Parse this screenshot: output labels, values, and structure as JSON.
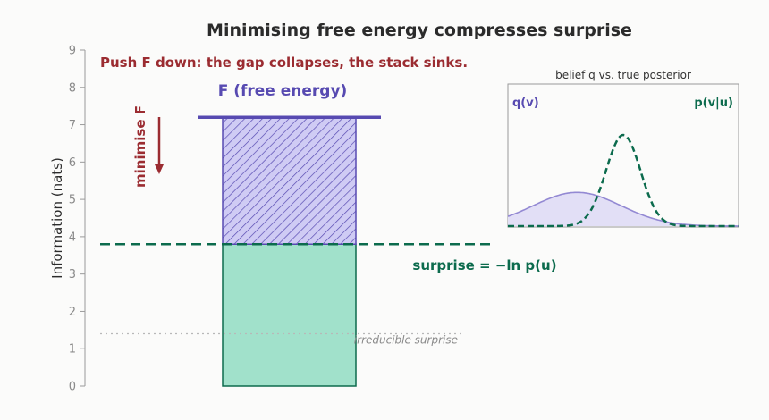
{
  "chart_data": {
    "type": "bar",
    "title": "Minimising free energy compresses surprise",
    "ylabel": "Information (nats)",
    "ylim": [
      0,
      9
    ],
    "yticks": [
      0,
      1,
      2,
      3,
      4,
      5,
      6,
      7,
      8,
      9
    ],
    "grid": false,
    "bar": {
      "surprise": 3.8,
      "free_energy": 7.2,
      "surprise_color": "#a1e1cb",
      "surprise_edge": "#0c6b4d",
      "gap_fill": "#cfcbf4",
      "gap_edge": "#574ab1"
    },
    "irreducible_surprise": 1.4,
    "annotations": {
      "push_text": "Push F down: the gap collapses, the stack sinks.",
      "free_energy_label": "F  (free energy)",
      "minimise_label": "minimise F",
      "surprise_label": "surprise  =  −ln p(u)",
      "irreducible_label": "irreducible surprise"
    },
    "colors": {
      "free_energy": "#574ab1",
      "surprise": "#0c6b4d",
      "push": "#9b2c31",
      "irreducible": "#b8b8b8"
    },
    "inset": {
      "title": "belief q vs. true posterior",
      "q_label": "q(v)",
      "p_label": "p(v|u)",
      "x_range": [
        0,
        10
      ],
      "q": {
        "mean": 3.0,
        "sd": 1.9,
        "peak": 0.37
      },
      "p": {
        "mean": 5.0,
        "sd": 0.75,
        "peak": 1.0
      },
      "q_fill": "#e2dff6",
      "q_color": "#9389d3",
      "p_color": "#0c6b4d"
    }
  }
}
